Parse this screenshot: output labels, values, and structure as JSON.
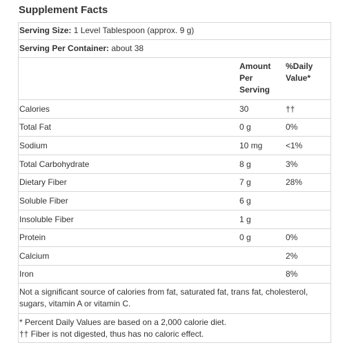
{
  "title": "Supplement Facts",
  "serving_size": {
    "label": "Serving Size:",
    "value": " 1 Level Tablespoon (approx. 9 g)"
  },
  "servings_per_container": {
    "label": "Serving Per Container:",
    "value": " about 38"
  },
  "headers": {
    "amount_line1": "Amount",
    "amount_line2": "Per",
    "amount_line3": "Serving",
    "dv_line1": "%Daily",
    "dv_line2": "Value*"
  },
  "rows": [
    {
      "name": "Calories",
      "amount": "30",
      "dv": "††"
    },
    {
      "name": "Total Fat",
      "amount": "0 g",
      "dv": "0%"
    },
    {
      "name": "Sodium",
      "amount": "10 mg",
      "dv": "<1%"
    },
    {
      "name": "Total Carbohydrate",
      "amount": "8 g",
      "dv": "3%"
    },
    {
      "name": "Dietary Fiber",
      "amount": "7 g",
      "dv": "28%"
    },
    {
      "name": "Soluble Fiber",
      "amount": "6 g",
      "dv": ""
    },
    {
      "name": "Insoluble Fiber",
      "amount": "1 g",
      "dv": ""
    },
    {
      "name": "Protein",
      "amount": "0 g",
      "dv": "0%"
    },
    {
      "name": "Calcium",
      "amount": "",
      "dv": "2%"
    },
    {
      "name": "Iron",
      "amount": "",
      "dv": "8%"
    }
  ],
  "note": "Not a significant source of calories from fat, saturated fat, trans fat, cholesterol, sugars, vitamin A or vitamin C.",
  "footnotes": [
    "* Percent Daily Values are based on a 2,000 calorie diet.",
    "†† Fiber is not digested, thus has no caloric effect."
  ]
}
